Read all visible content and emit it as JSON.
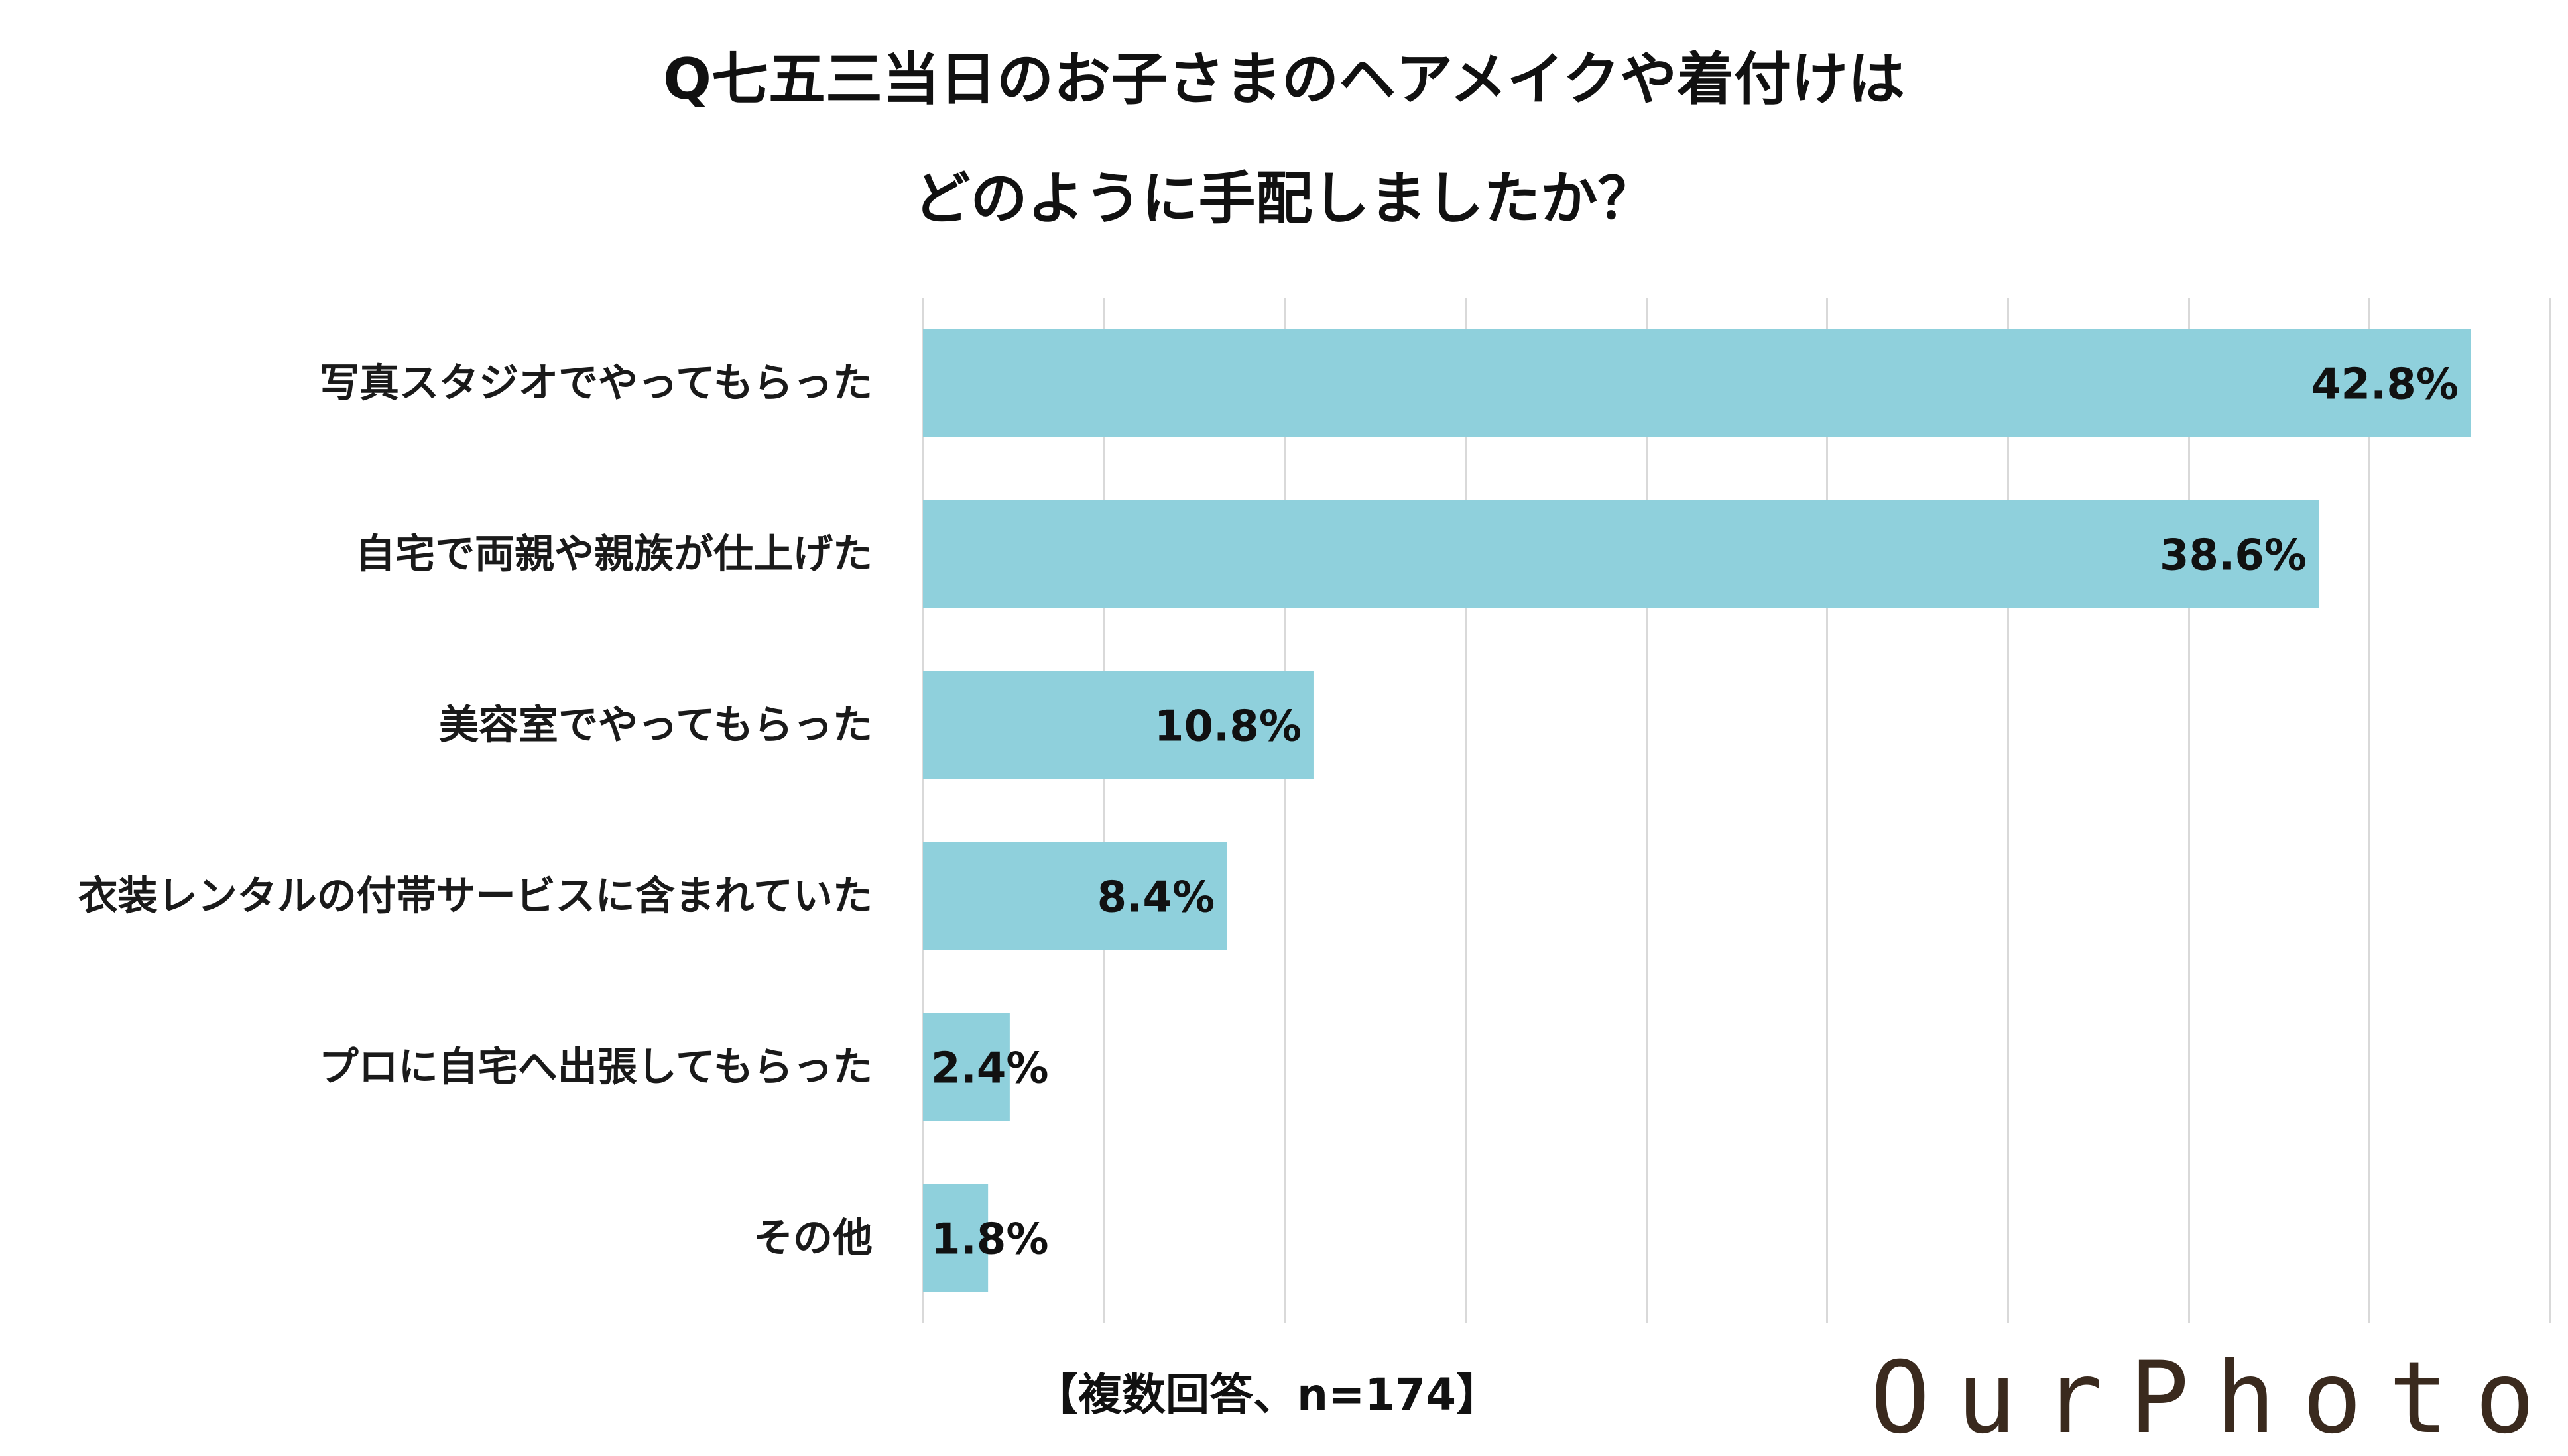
{
  "chart_data": {
    "type": "bar",
    "orientation": "horizontal",
    "title": "Q七五三当日のお子さまのヘアメイクや着付けはどのように手配しましたか？",
    "title_lines": [
      "Q七五三当日のお子さまのヘアメイクや着付けは",
      "どのように手配しましたか？"
    ],
    "categories": [
      "写真スタジオでやってもらった",
      "自宅で両親や親族が仕上げた",
      "美容室でやってもらった",
      "衣装レンタルの付帯サービスに含まれていた",
      "プロに自宅へ出張してもらった",
      "その他"
    ],
    "values": [
      42.8,
      38.6,
      10.8,
      8.4,
      2.4,
      1.8
    ],
    "value_labels": [
      "42.8%",
      "38.6%",
      "10.8%",
      "8.4%",
      "2.4%",
      "1.8%"
    ],
    "unit": "%",
    "xlim": [
      0,
      45
    ],
    "grid_step": 5,
    "grid": true,
    "tick_labels_shown": false,
    "legend": "none",
    "bar_color": "#8fd0dc",
    "gridline_color": "#d9d9d9",
    "note": "【複数回答、n=174】"
  },
  "logo": {
    "text": "OurPhoto",
    "color": "#3a2a1e"
  }
}
